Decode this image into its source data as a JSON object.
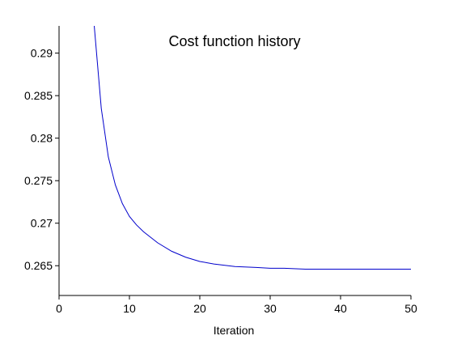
{
  "chart_data": {
    "type": "line",
    "title": "Cost function history",
    "xlabel": "Iteration",
    "ylabel": "",
    "xlim": [
      0,
      50
    ],
    "ylim": [
      0.2615,
      0.2932
    ],
    "x_ticks": [
      0,
      10,
      20,
      30,
      40,
      50
    ],
    "x_tick_labels": [
      "0",
      "10",
      "20",
      "30",
      "40",
      "50"
    ],
    "y_ticks": [
      0.265,
      0.27,
      0.275,
      0.28,
      0.285,
      0.29
    ],
    "y_tick_labels": [
      "0.265",
      "0.27",
      "0.275",
      "0.28",
      "0.285",
      "0.29"
    ],
    "grid": false,
    "series": [
      {
        "color": "#0000cc",
        "x": [
          5,
          6,
          7,
          8,
          9,
          10,
          11,
          12,
          14,
          16,
          18,
          20,
          22,
          25,
          28,
          30,
          32,
          35,
          40,
          45,
          50
        ],
        "y": [
          0.2932,
          0.2835,
          0.2778,
          0.2745,
          0.2723,
          0.2708,
          0.2698,
          0.269,
          0.2677,
          0.2667,
          0.266,
          0.2655,
          0.2652,
          0.2649,
          0.2648,
          0.2647,
          0.2647,
          0.2646,
          0.2646,
          0.2646,
          0.2646
        ]
      }
    ]
  }
}
